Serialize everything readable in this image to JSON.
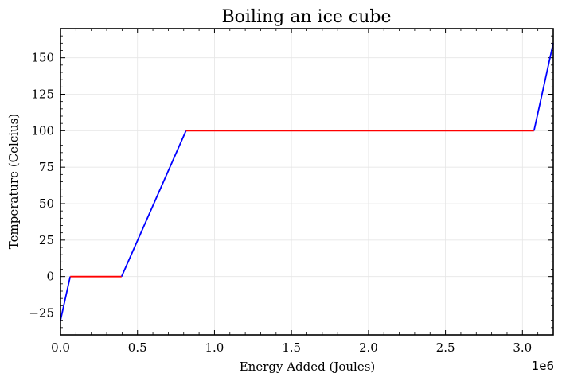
{
  "chart_data": {
    "type": "line",
    "title": "Boiling an ice cube",
    "xlabel": "Energy Added (Joules)",
    "ylabel": "Temperature (Celcius)",
    "x_offset_label": "1e6",
    "xlim": [
      0,
      3.2
    ],
    "ylim": [
      -40,
      170
    ],
    "x_ticks": [
      0.0,
      0.5,
      1.0,
      1.5,
      2.0,
      2.5,
      3.0
    ],
    "x_tick_labels": [
      "0.0",
      "0.5",
      "1.0",
      "1.5",
      "2.0",
      "2.5",
      "3.0"
    ],
    "y_ticks": [
      -25,
      0,
      25,
      50,
      75,
      100,
      125,
      150
    ],
    "y_tick_labels": [
      "−25",
      "0",
      "25",
      "50",
      "75",
      "100",
      "125",
      "150"
    ],
    "grid": true,
    "series": [
      {
        "color": "#0000ff",
        "points": [
          [
            0.0,
            -30
          ],
          [
            0.063,
            0
          ]
        ]
      },
      {
        "color": "#ff0000",
        "points": [
          [
            0.063,
            0
          ],
          [
            0.397,
            0
          ]
        ]
      },
      {
        "color": "#0000ff",
        "points": [
          [
            0.397,
            0
          ],
          [
            0.815,
            100
          ]
        ]
      },
      {
        "color": "#ff0000",
        "points": [
          [
            0.815,
            100
          ],
          [
            3.075,
            100
          ]
        ]
      },
      {
        "color": "#0000ff",
        "points": [
          [
            3.075,
            100
          ],
          [
            3.2,
            160
          ]
        ]
      }
    ]
  }
}
